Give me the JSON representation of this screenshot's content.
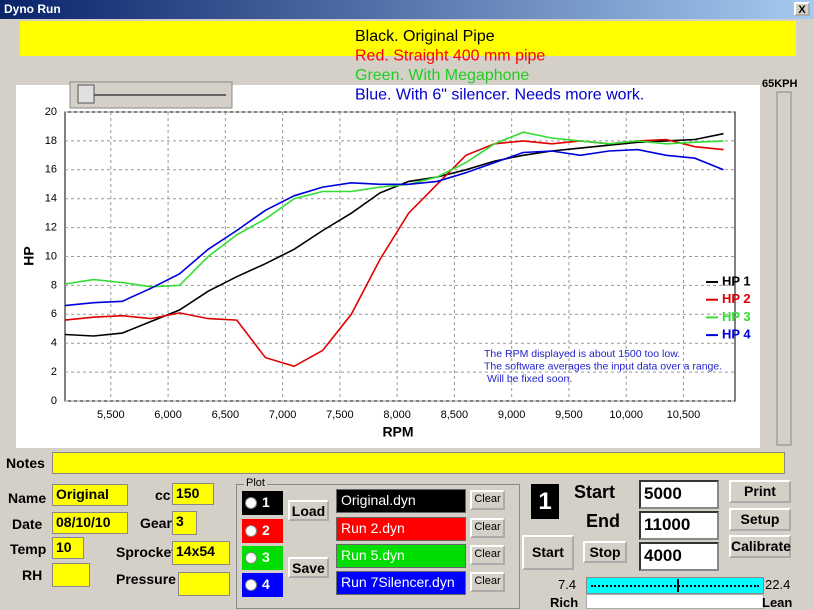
{
  "window": {
    "title": "Dyno Run",
    "close": "X",
    "speed": "65KPH",
    "banner": [
      {
        "text": "Black. Original Pipe",
        "color": "#000000"
      },
      {
        "text": "Red. Straight 400 mm pipe",
        "color": "#ff0000"
      },
      {
        "text": "Green. With Megaphone",
        "color": "#22cc22"
      },
      {
        "text": "Blue. With 6\" silencer. Needs more work.",
        "color": "#0000cc"
      }
    ]
  },
  "chart_data": {
    "type": "line",
    "x_label": "RPM",
    "y_label": "HP",
    "annotation": [
      "The RPM displayed is about 1500 too low.",
      "The software averages the input data over a range.",
      "Will be fixed soon."
    ],
    "x": [
      5100,
      5350,
      5600,
      5850,
      6100,
      6350,
      6600,
      6850,
      7100,
      7350,
      7600,
      7850,
      8100,
      8350,
      8600,
      8850,
      9100,
      9350,
      9600,
      9850,
      10100,
      10350,
      10600,
      10850
    ],
    "series": [
      {
        "name": "HP 1",
        "color": "#000000",
        "values": [
          4.6,
          4.5,
          4.7,
          5.5,
          6.3,
          7.6,
          8.6,
          9.5,
          10.5,
          11.8,
          13.0,
          14.4,
          15.2,
          15.5,
          16.0,
          16.6,
          17.0,
          17.3,
          17.5,
          17.7,
          17.9,
          18.0,
          18.1,
          18.5
        ]
      },
      {
        "name": "HP 2",
        "color": "#e00000",
        "values": [
          5.6,
          5.8,
          5.9,
          5.7,
          6.1,
          5.7,
          5.6,
          3.0,
          2.4,
          3.5,
          6.0,
          9.8,
          13.0,
          15.0,
          17.0,
          17.8,
          18.0,
          17.8,
          18.0,
          17.8,
          18.0,
          18.1,
          17.6,
          17.4
        ]
      },
      {
        "name": "HP 3",
        "color": "#33dd33",
        "values": [
          8.1,
          8.4,
          8.2,
          7.9,
          8.0,
          10.0,
          11.5,
          12.6,
          14.0,
          14.5,
          14.5,
          14.8,
          15.0,
          15.5,
          16.5,
          17.8,
          18.6,
          18.2,
          18.0,
          17.8,
          18.0,
          17.8,
          17.9,
          18.0
        ]
      },
      {
        "name": "HP 4",
        "color": "#0000dd",
        "values": [
          6.6,
          6.8,
          6.9,
          7.8,
          8.8,
          10.5,
          11.8,
          13.2,
          14.2,
          14.8,
          15.1,
          15.0,
          15.0,
          15.2,
          15.8,
          16.5,
          17.2,
          17.3,
          17.0,
          17.3,
          17.4,
          17.0,
          16.8,
          16.0
        ]
      }
    ],
    "xlim": [
      5100,
      10950
    ],
    "xticks": [
      {
        "value": 5500,
        "label": "5,500"
      },
      {
        "value": 6000,
        "label": "6,000"
      },
      {
        "value": 6500,
        "label": "6,500"
      },
      {
        "value": 7000,
        "label": "7,000"
      },
      {
        "value": 7500,
        "label": "7,500"
      },
      {
        "value": 8000,
        "label": "8,000"
      },
      {
        "value": 8500,
        "label": "8,500"
      },
      {
        "value": 9000,
        "label": "9,000"
      },
      {
        "value": 9500,
        "label": "9,500"
      },
      {
        "value": 10000,
        "label": "10,000"
      },
      {
        "value": 10500,
        "label": "10,500"
      }
    ],
    "ylim": [
      0,
      20
    ],
    "yticks": [
      0,
      2,
      4,
      6,
      8,
      10,
      12,
      14,
      16,
      18,
      20
    ],
    "grid": true
  },
  "form": {
    "notes": "Notes",
    "name": {
      "label": "Name",
      "value": "Original"
    },
    "date": {
      "label": "Date",
      "value": "08/10/10"
    },
    "temp": {
      "label": "Temp",
      "value": "10"
    },
    "rh": {
      "label": "RH"
    },
    "cc": {
      "label": "cc",
      "value": "150"
    },
    "gear": {
      "label": "Gear",
      "value": "3"
    },
    "sprocket": {
      "label": "Sprocket",
      "value": "14x54"
    },
    "pressure": {
      "label": "Pressure"
    }
  },
  "plot": {
    "title": "Plot",
    "load": "Load",
    "save": "Save",
    "clear": "Clear",
    "runs": [
      {
        "number": "1",
        "file": "Original.dyn",
        "color": "#000000"
      },
      {
        "number": "2",
        "file": "Run 2.dyn",
        "color": "#ff0000"
      },
      {
        "number": "3",
        "file": "Run 5.dyn",
        "color": "#00dd00"
      },
      {
        "number": "4",
        "file": "Run 7Silencer.dyn",
        "color": "#0000ff"
      }
    ]
  },
  "run": {
    "current": "1",
    "start_label": "Start",
    "end_label": "End",
    "start": "5000",
    "end": "11000",
    "step": "4000",
    "start_button": "Start",
    "stop": "Stop",
    "print": "Print",
    "setup": "Setup",
    "calibrate": "Calibrate"
  },
  "mixture": {
    "min": "7.4",
    "max": "22.4",
    "rich": "Rich",
    "lean": "Lean"
  }
}
